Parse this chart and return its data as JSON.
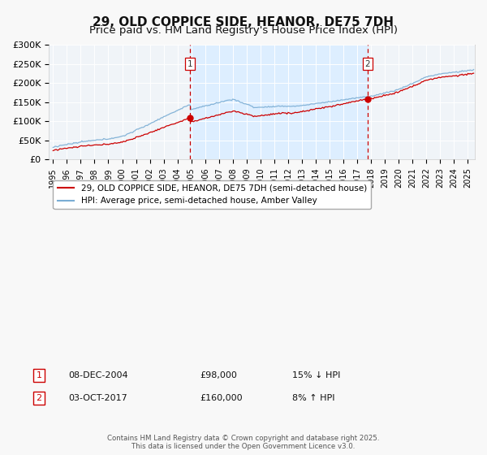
{
  "title": "29, OLD COPPICE SIDE, HEANOR, DE75 7DH",
  "subtitle": "Price paid vs. HM Land Registry's House Price Index (HPI)",
  "legend_line1": "29, OLD COPPICE SIDE, HEANOR, DE75 7DH (semi-detached house)",
  "legend_line2": "HPI: Average price, semi-detached house, Amber Valley",
  "footer": "Contains HM Land Registry data © Crown copyright and database right 2025.\nThis data is licensed under the Open Government Licence v3.0.",
  "ylim": [
    0,
    300000
  ],
  "ytick_labels": [
    "£0",
    "£50K",
    "£100K",
    "£150K",
    "£200K",
    "£250K",
    "£300K"
  ],
  "ytick_values": [
    0,
    50000,
    100000,
    150000,
    200000,
    250000,
    300000
  ],
  "marker1_year": 2004.92,
  "marker1_price": 98000,
  "marker1_text": "08-DEC-2004",
  "marker1_hpi_pct": "15% ↓ HPI",
  "marker2_year": 2017.75,
  "marker2_price": 160000,
  "marker2_text": "03-OCT-2017",
  "marker2_hpi_pct": "8% ↑ HPI",
  "line_color_property": "#cc0000",
  "line_color_hpi": "#7aadd4",
  "shade_color": "#ddeeff",
  "plot_bg_color": "#f0f4f8",
  "grid_color": "#ffffff",
  "title_fontsize": 11,
  "subtitle_fontsize": 9.5
}
